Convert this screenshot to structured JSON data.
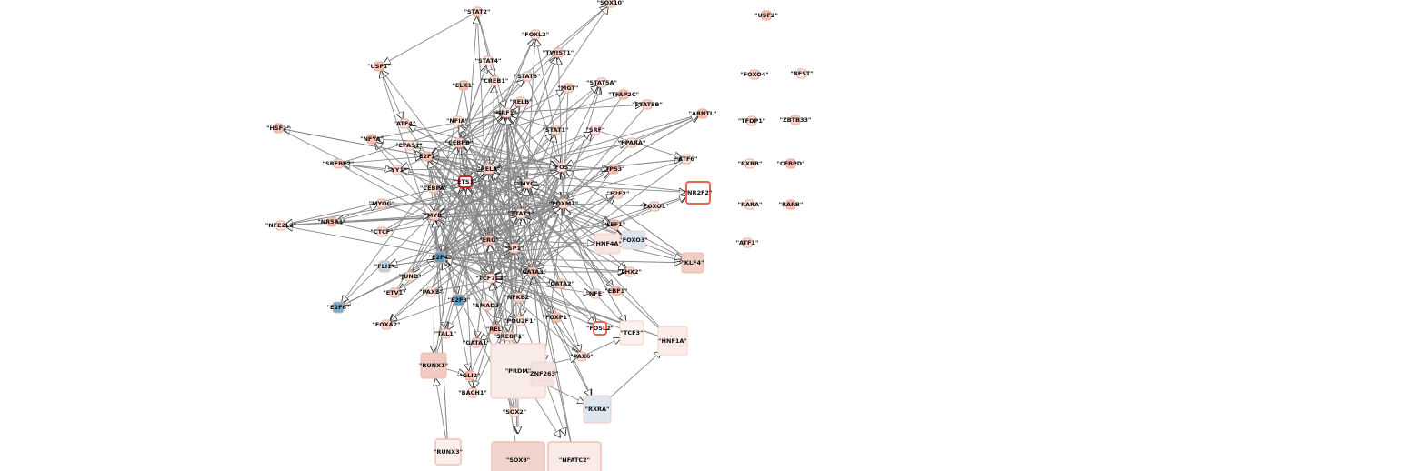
{
  "nodes": [
    {
      "label": "\"STAT2\""
    },
    {
      "label": "\"SOX10\""
    },
    {
      "label": "\"USF2\""
    },
    {
      "label": "\"FOXL2\""
    },
    {
      "label": "\"TWIST1\""
    },
    {
      "label": "\"STAT4\""
    },
    {
      "label": "\"USF1\""
    },
    {
      "label": "\"STAT6\""
    },
    {
      "label": "\"FOXO4\""
    },
    {
      "label": "\"REST\""
    },
    {
      "label": "\"ELK1\""
    },
    {
      "label": "\"CREB1\""
    },
    {
      "label": "\"MGT\""
    },
    {
      "label": "\"STAT5A\""
    },
    {
      "label": "\"TFAP2C\""
    },
    {
      "label": "\"RELB\""
    },
    {
      "label": "\"STAT5B\""
    },
    {
      "label": "\"IRF1\""
    },
    {
      "label": "\"ARNTL\""
    },
    {
      "label": "\"TFDP1\""
    },
    {
      "label": "\"ZBTB33\""
    },
    {
      "label": "\"NFIA\""
    },
    {
      "label": "\"HSF1\""
    },
    {
      "label": "\"ATF4\""
    },
    {
      "label": "\"STAT1\""
    },
    {
      "label": "\"SRF\""
    },
    {
      "label": "\"NFYA\""
    },
    {
      "label": "\"EPAS1\""
    },
    {
      "label": "\"CEBPB\""
    },
    {
      "label": "\"PPARA\""
    },
    {
      "label": "\"E2F1\""
    },
    {
      "label": "\"ATF6\""
    },
    {
      "label": "\"SREBF2\""
    },
    {
      "label": "\"RXRB\""
    },
    {
      "label": "\"CEBPD\""
    },
    {
      "label": "\"YY1\""
    },
    {
      "label": "\"RELA\""
    },
    {
      "label": "\"FOS\""
    },
    {
      "label": "\"TP53\""
    },
    {
      "label": "\"ETS1\""
    },
    {
      "label": "\"CEBPA\""
    },
    {
      "label": "\"MYC\""
    },
    {
      "label": "\"NR2F2\""
    },
    {
      "label": "\"E2F2\""
    },
    {
      "label": "\"MYOG\""
    },
    {
      "label": "\"RARA\""
    },
    {
      "label": "\"RARB\""
    },
    {
      "label": "\"FOXO1\""
    },
    {
      "label": "\"FOXM1\""
    },
    {
      "label": "\"NFE2L2\""
    },
    {
      "label": "\"NR5A1\""
    },
    {
      "label": "\"CTCF\""
    },
    {
      "label": "\"MYB\""
    },
    {
      "label": "\"STAT3\""
    },
    {
      "label": "\"LEF1\""
    },
    {
      "label": "\"ATF1\""
    },
    {
      "label": "\"FOXO3\""
    },
    {
      "label": "\"HNF4A\""
    },
    {
      "label": "\"ERG\""
    },
    {
      "label": "\"SP1\""
    },
    {
      "label": "\"KLF4\""
    },
    {
      "label": "\"FLI1\""
    },
    {
      "label": "\"E2F4\""
    },
    {
      "label": "\"JUND\""
    },
    {
      "label": "\"ETV1\""
    },
    {
      "label": "\"TCF7L2\""
    },
    {
      "label": "\"GATA3\""
    },
    {
      "label": "\"LHX2\""
    },
    {
      "label": "\"GATA2\""
    },
    {
      "label": "\"PAX2\""
    },
    {
      "label": "\"E2F3\""
    },
    {
      "label": "\"SMAD3\""
    },
    {
      "label": "\"NFKB2\""
    },
    {
      "label": "\"NFE\""
    },
    {
      "label": "\"EBF1\""
    },
    {
      "label": "\"E2F6\""
    },
    {
      "label": "\"FOXA2\""
    },
    {
      "label": "\"POU2F1\""
    },
    {
      "label": "\"FOXP1\""
    },
    {
      "label": "\"FOSL2\""
    },
    {
      "label": "\"TCF3\""
    },
    {
      "label": "\"TAL1\""
    },
    {
      "label": "\"REL\""
    },
    {
      "label": "\"SREBF1\""
    },
    {
      "label": "\"GATA1\""
    },
    {
      "label": "\"HNF1A\""
    },
    {
      "label": "\"RUNX1\""
    },
    {
      "label": "\"PAX6\""
    },
    {
      "label": "\"PRDM\""
    },
    {
      "label": "\"ZNF263\""
    },
    {
      "label": "\"GLI2\""
    },
    {
      "label": "\"BACH1\""
    },
    {
      "label": "\"RXRA\""
    },
    {
      "label": "\"SOX2\""
    },
    {
      "label": "\"RUNX3\""
    },
    {
      "label": "\"SOX9\""
    },
    {
      "label": "\"NFATC2\""
    }
  ]
}
